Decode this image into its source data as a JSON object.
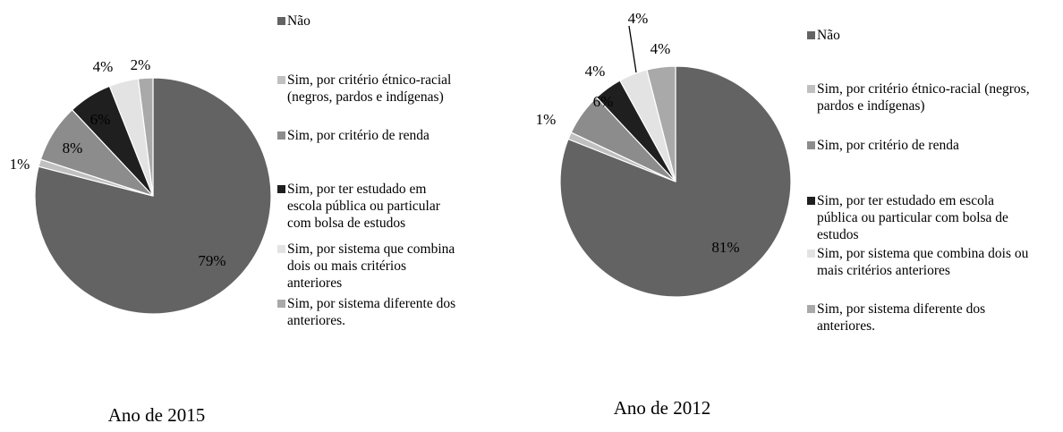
{
  "chart_data": [
    {
      "type": "pie",
      "caption": "Ano de 2015",
      "series": [
        {
          "name": "Não",
          "value": 79,
          "label": "79%",
          "color": "#636363"
        },
        {
          "name": "Sim, por critério étnico-racial (negros, pardos e indígenas)",
          "value": 1,
          "label": "1%",
          "color": "#c0c0c0"
        },
        {
          "name": "Sim, por critério de renda",
          "value": 8,
          "label": "8%",
          "color": "#8c8c8c"
        },
        {
          "name": "Sim, por ter estudado em escola pública ou particular com bolsa de estudos",
          "value": 6,
          "label": "6%",
          "color": "#1f1f1f"
        },
        {
          "name": "Sim, por sistema que combina dois ou mais critérios anteriores",
          "value": 4,
          "label": "4%",
          "color": "#e3e3e3"
        },
        {
          "name": "Sim, por sistema diferente dos anteriores.",
          "value": 2,
          "label": "2%",
          "color": "#a9a9a9"
        }
      ],
      "legend": {
        "position": "right",
        "entries": [
          {
            "lines": [
              "Não"
            ]
          },
          {
            "lines": [
              "Sim, por critério étnico-racial",
              "(negros, pardos e indígenas)"
            ]
          },
          {
            "lines": [
              "Sim, por critério de renda"
            ]
          },
          {
            "lines": [
              "Sim, por ter estudado em",
              "escola pública ou particular",
              "com bolsa de estudos"
            ]
          },
          {
            "lines": [
              "Sim, por sistema que combina",
              "dois ou mais critérios",
              "anteriores"
            ]
          },
          {
            "lines": [
              "Sim, por sistema diferente dos",
              "anteriores."
            ]
          }
        ]
      }
    },
    {
      "type": "pie",
      "caption": "Ano de 2012",
      "series": [
        {
          "name": "Não",
          "value": 81,
          "label": "81%",
          "color": "#636363"
        },
        {
          "name": "Sim, por critério étnico-racial (negros, pardos e indígenas)",
          "value": 1,
          "label": "1%",
          "color": "#c0c0c0"
        },
        {
          "name": "Sim, por critério de renda",
          "value": 6,
          "label": "6%",
          "color": "#8c8c8c"
        },
        {
          "name": "Sim, por ter estudado em escola pública ou particular com bolsa de estudos",
          "value": 4,
          "label": "4%",
          "color": "#1f1f1f"
        },
        {
          "name": "Sim, por sistema que combina dois ou mais critérios anteriores",
          "value": 4,
          "label": "4%",
          "color": "#e3e3e3"
        },
        {
          "name": "Sim, por sistema diferente dos anteriores.",
          "value": 4,
          "label": "4%",
          "color": "#a9a9a9"
        }
      ],
      "legend": {
        "position": "right",
        "entries": [
          {
            "lines": [
              "Não"
            ]
          },
          {
            "lines": [
              "Sim, por critério étnico-racial (negros,",
              "pardos e indígenas)"
            ]
          },
          {
            "lines": [
              "Sim, por critério de renda"
            ]
          },
          {
            "lines": [
              "Sim, por ter estudado em escola",
              "pública ou particular com bolsa de",
              "estudos"
            ]
          },
          {
            "lines": [
              "Sim, por sistema que combina dois ou",
              "mais critérios anteriores"
            ]
          },
          {
            "lines": [
              "Sim, por sistema diferente dos",
              "anteriores."
            ]
          }
        ]
      }
    }
  ]
}
